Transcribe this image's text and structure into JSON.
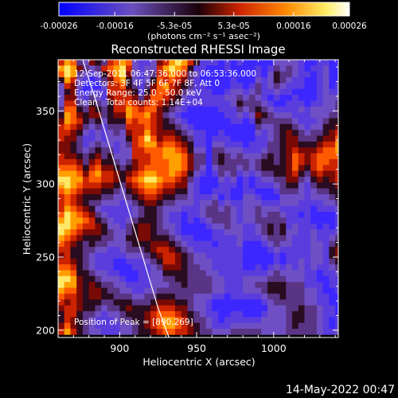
{
  "chart_data": {
    "type": "heatmap",
    "title": "Reconstructed RHESSI Image",
    "xlabel": "Heliocentric X (arcsec)",
    "ylabel": "Heliocentric Y (arcsec)",
    "xlim": [
      860,
      1042
    ],
    "ylim": [
      195,
      385
    ],
    "x_ticks": [
      900,
      950,
      1000
    ],
    "y_ticks": [
      200,
      250,
      300,
      350
    ],
    "grid": false,
    "colorbar": {
      "orientation": "horizontal",
      "placement": "top",
      "range": [
        -0.00026,
        0.00026
      ],
      "tick_values": [
        -0.00026,
        -0.00016,
        -5.3e-05,
        5.3e-05,
        0.00016,
        0.00026
      ],
      "tick_labels": [
        "-0.00026",
        "-0.00016",
        "-5.3e-05",
        "5.3e-05",
        "0.00016",
        "0.00026"
      ],
      "unit_label": "(photons cm⁻² s⁻¹ asec⁻²)",
      "colormap": [
        "#0000ff",
        "#6b4fbf",
        "#2a0010",
        "#cc2200",
        "#ff8800",
        "#ffff88",
        "#ffffff"
      ]
    },
    "annotations": [
      "12-Sep-2011 06:47:36.000 to 06:53:36.000",
      "Detectors: 3F 4F 5F 6F 7F 8F, Att 0",
      "Energy Range: 25.0 - 50.0 keV",
      "Clean   Total counts: 1.14E+04"
    ],
    "peak_label": "Position of Peak = [890,269]",
    "peak": [
      890,
      269
    ],
    "limb_curve": [
      [
        876,
        385
      ],
      [
        885,
        355
      ],
      [
        895,
        320
      ],
      [
        905,
        285
      ],
      [
        915,
        250
      ],
      [
        925,
        215
      ],
      [
        932,
        195
      ]
    ],
    "image_layout": {
      "x_center_first": 862,
      "x_step": 4,
      "y_center_first": 383,
      "y_step": -4
    },
    "intensity_grid": [
      "68732543678721125689864111010100000222210011001",
      "89853236789621226898741100010000101323210112001",
      "79832124689521236787632000000000102433211012001",
      "48621013578421247676531000001000212432110012002",
      "26520002667431357865431100001101312321110012013",
      "24510111666541467765321110012212311211000012114",
      "25521321566653577654211111122323210100100012224",
      "26632432466765676543111111112433321001110112234",
      "37743543466876775432100000111323432111121222235",
      "48754553455877865321000000011212543222111222336",
      "58764342444767765432100000001101433333211123447",
      "67653231333666765443210000000000322344321224457",
      "66542121232566865554321100100000212345432334567",
      "65531121222467975665431101110000112345533345577",
      "55431232212367886776541102211101113345544456687",
      "55432343312266777887642203322211123345655567787",
      "65543453422266677888753303432322234345765677777",
      "66653564432356677788753303433332344345765677666",
      "77764675543456777788753202333232344445754676665",
      "88875786654567887787642101323121233445643565566",
      "99886776654678998776531000212010122335532454566",
      "89876665543567887665521000111010111234421344456",
      "78765554432456776554421001110011000133321233445",
      "67654443322345665443321112010022100022221222345",
      "67654332221234554332221223121122211122211112235",
      "68765421111123443222111233232122322211111011124",
      "79876532111123443211011233332122323321101000013",
      "89887643211234443211010123332122333331111000012",
      "99876654221345543221000012232211234341211101012",
      "98765554322345543321000001122211234342211211123",
      "87654443322445544432110001111211123332111211234",
      "76543433222344455543211110111200012322111221345",
      "66443322112333456654321111111100001211111221456",
      "56443211111222345665432211111100000101111221456",
      "66543211100111234665432221111100000101121221346",
      "77643211100011123555433221111100101212121211235",
      "88744322110001122444433322111111112322221101124",
      "99854432221001122334433332211122223332221100113",
      "98854543322111122233433332211122334443331110112",
      "87754554332211223333333332211122234443332210012",
      "76654554433322334443332221101111123343332211002",
      "65654443344433345554432210000000012333332211002",
      "56654432334544456665532210000000002223343321102",
      "46643321223444567776543211001100012223443321102",
      "46543211123344567887643321011111122223443321012",
      "57543211112234567887654321112222222223433321012",
      "68643221112234456776654332223333322223333321123"
    ]
  },
  "timestamp": "14-May-2022 00:47"
}
